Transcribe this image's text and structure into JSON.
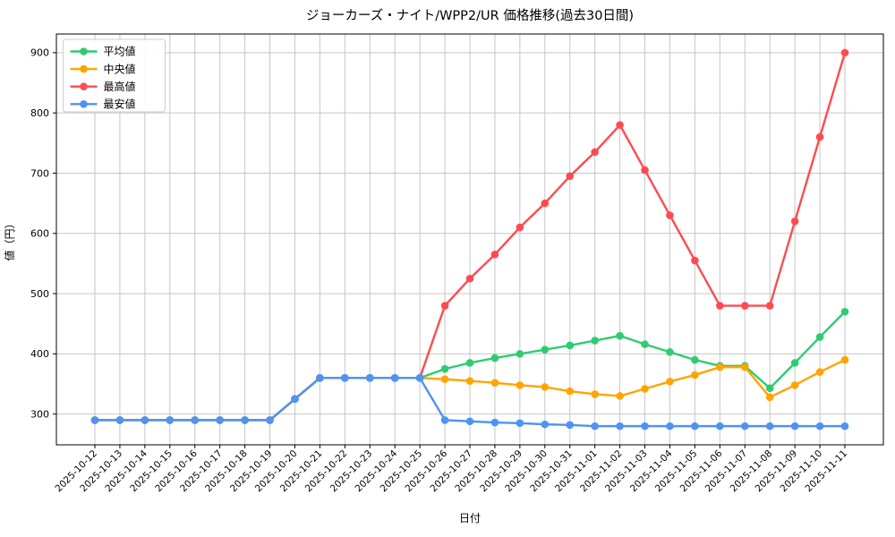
{
  "chart_data": {
    "type": "line",
    "title": "ジョーカーズ・ナイト/WPP2/UR 価格推移(過去30日間)",
    "xlabel": "日付",
    "ylabel": "値（円）",
    "ylim": [
      249,
      931
    ],
    "yticks": [
      300,
      400,
      500,
      600,
      700,
      800,
      900
    ],
    "grid": true,
    "legend_position": "upper-left",
    "legend_entries": [
      "平均値",
      "中央値",
      "最高値",
      "最安値"
    ],
    "categories": [
      "2025-10-12",
      "2025-10-13",
      "2025-10-14",
      "2025-10-15",
      "2025-10-16",
      "2025-10-17",
      "2025-10-18",
      "2025-10-19",
      "2025-10-20",
      "2025-10-21",
      "2025-10-22",
      "2025-10-23",
      "2025-10-24",
      "2025-10-25",
      "2025-10-26",
      "2025-10-27",
      "2025-10-28",
      "2025-10-29",
      "2025-10-30",
      "2025-10-31",
      "2025-11-01",
      "2025-11-02",
      "2025-11-03",
      "2025-11-04",
      "2025-11-05",
      "2025-11-06",
      "2025-11-07",
      "2025-11-08",
      "2025-11-09",
      "2025-11-10",
      "2025-11-11"
    ],
    "series": [
      {
        "name": "平均値",
        "color": "#2ecc71",
        "values": [
          290,
          290,
          290,
          290,
          290,
          290,
          290,
          290,
          325,
          360,
          360,
          360,
          360,
          360,
          375,
          385,
          393,
          400,
          407,
          414,
          422,
          430,
          416,
          403,
          390,
          380,
          380,
          343,
          385,
          428,
          470
        ]
      },
      {
        "name": "中央値",
        "color": "#ffa502",
        "values": [
          290,
          290,
          290,
          290,
          290,
          290,
          290,
          290,
          325,
          360,
          360,
          360,
          360,
          360,
          358,
          355,
          352,
          348,
          345,
          338,
          333,
          330,
          342,
          354,
          365,
          378,
          378,
          328,
          348,
          370,
          390
        ]
      },
      {
        "name": "最高値",
        "color": "#ff4b50",
        "values": [
          290,
          290,
          290,
          290,
          290,
          290,
          290,
          290,
          325,
          360,
          360,
          360,
          360,
          360,
          480,
          525,
          565,
          610,
          650,
          695,
          735,
          780,
          705,
          630,
          555,
          480,
          480,
          480,
          620,
          760,
          900
        ]
      },
      {
        "name": "最安値",
        "color": "#4d94f2",
        "values": [
          290,
          290,
          290,
          290,
          290,
          290,
          290,
          290,
          325,
          360,
          360,
          360,
          360,
          360,
          290,
          288,
          286,
          285,
          283,
          282,
          280,
          280,
          280,
          280,
          280,
          280,
          280,
          280,
          280,
          280,
          280
        ]
      }
    ],
    "colors": {
      "grid": "#c6c6c6",
      "spine": "#000000",
      "background": "#ffffff",
      "legend_border": "#cccccc"
    }
  }
}
